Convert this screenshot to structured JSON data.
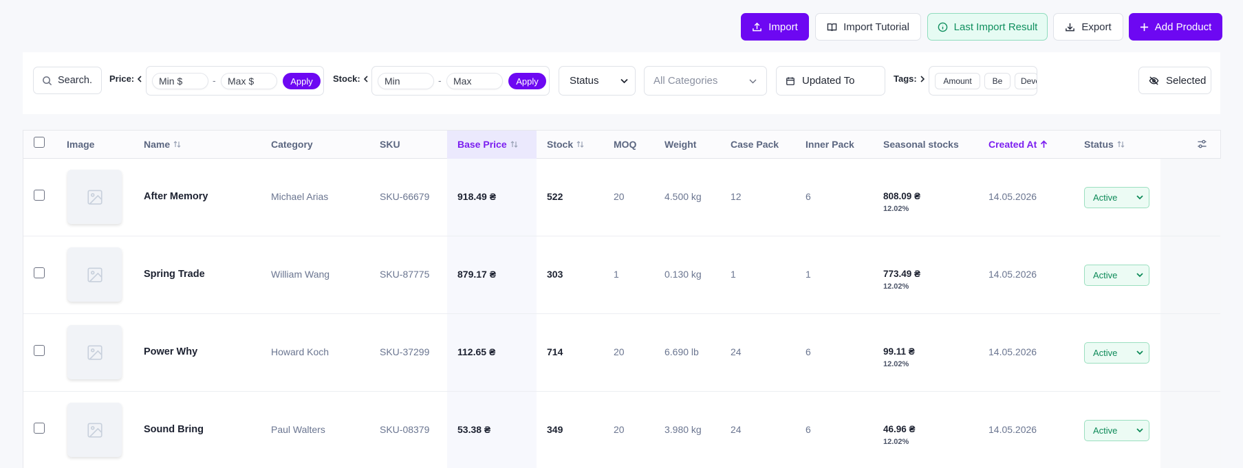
{
  "toolbar": {
    "import_label": "Import",
    "import_tutorial_label": "Import Tutorial",
    "last_import_label": "Last Import Result",
    "export_label": "Export",
    "add_product_label": "Add Product"
  },
  "filters": {
    "search_placeholder": "Search...",
    "search_text": "Search.",
    "price_label": "Price:",
    "price_min_placeholder": "Min $",
    "price_max_placeholder": "Max $",
    "price_apply": "Apply",
    "stock_label": "Stock:",
    "stock_min_placeholder": "Min",
    "stock_max_placeholder": "Max",
    "stock_apply": "Apply",
    "range_separator": "-",
    "status_select": "Status",
    "categories_select": "All Categories",
    "updated_to": "Updated To",
    "tags_label": "Tags:",
    "tags": [
      "Amount",
      "Be",
      "Deve"
    ],
    "selected_button": "Selected"
  },
  "table": {
    "columns": {
      "image": "Image",
      "name": "Name",
      "category": "Category",
      "sku": "SKU",
      "base_price": "Base Price",
      "stock": "Stock",
      "moq": "MOQ",
      "weight": "Weight",
      "case_pack": "Case Pack",
      "inner_pack": "Inner Pack",
      "seasonal": "Seasonal stocks",
      "created_at": "Created At",
      "status": "Status"
    },
    "rows": [
      {
        "name": "After Memory",
        "category": "Michael Arias",
        "sku": "SKU-66679",
        "price": "918.49 ₴",
        "stock": "522",
        "moq": "20",
        "weight": "4.500 kg",
        "case_pack": "12",
        "inner_pack": "6",
        "seasonal_value": "808.09 ₴",
        "seasonal_pct": "12.02%",
        "created": "14.05.2026",
        "status": "Active"
      },
      {
        "name": "Spring Trade",
        "category": "William Wang",
        "sku": "SKU-87775",
        "price": "879.17 ₴",
        "stock": "303",
        "moq": "1",
        "weight": "0.130 kg",
        "case_pack": "1",
        "inner_pack": "1",
        "seasonal_value": "773.49 ₴",
        "seasonal_pct": "12.02%",
        "created": "14.05.2026",
        "status": "Active"
      },
      {
        "name": "Power Why",
        "category": "Howard Koch",
        "sku": "SKU-37299",
        "price": "112.65 ₴",
        "stock": "714",
        "moq": "20",
        "weight": "6.690 lb",
        "case_pack": "24",
        "inner_pack": "6",
        "seasonal_value": "99.11 ₴",
        "seasonal_pct": "12.02%",
        "created": "14.05.2026",
        "status": "Active"
      },
      {
        "name": "Sound Bring",
        "category": "Paul Walters",
        "sku": "SKU-08379",
        "price": "53.38 ₴",
        "stock": "349",
        "moq": "20",
        "weight": "3.980 kg",
        "case_pack": "24",
        "inner_pack": "6",
        "seasonal_value": "46.96 ₴",
        "seasonal_pct": "12.02%",
        "created": "14.05.2026",
        "status": "Active"
      }
    ]
  },
  "colors": {
    "accent": "#6d08f2",
    "success": "#0d8a58"
  }
}
